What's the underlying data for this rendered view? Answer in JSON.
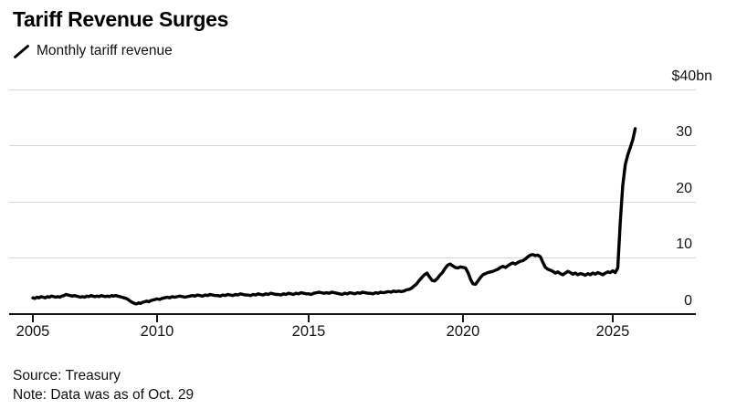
{
  "header": {
    "title": "Tariff Revenue Surges"
  },
  "legend": {
    "series_label": "Monthly tariff revenue",
    "mark": "diagonal-line-sample",
    "line_color": "#000000"
  },
  "footer": {
    "source": "Source: Treasury",
    "note": "Note: Data was as of Oct. 29"
  },
  "colors": {
    "line": "#000000",
    "gridline": "#d8d8d8",
    "axis": "#161616",
    "background": "#ffffff"
  },
  "chart_data": {
    "type": "line",
    "title": "Tariff Revenue Surges",
    "series_name": "Monthly tariff revenue",
    "unit": "$bn",
    "y_axis": {
      "top_label": "$40bn",
      "top_value": 40,
      "tick_values": [
        40,
        30,
        20,
        10,
        0
      ],
      "range": [
        0,
        40
      ],
      "grid": true,
      "labels_position": "right"
    },
    "x_axis": {
      "tick_years": [
        2005,
        2010,
        2015,
        2020,
        2025
      ],
      "range_start": "2005-01",
      "range_end": "2025-10"
    },
    "monthly_values_by_year": {
      "2005": [
        2.9,
        2.8,
        3.0,
        2.9,
        3.1,
        3.0,
        2.9,
        3.1,
        3.0,
        3.2,
        3.1,
        3.0
      ],
      "2006": [
        3.1,
        3.0,
        3.2,
        3.3,
        3.5,
        3.4,
        3.3,
        3.2,
        3.3,
        3.2,
        3.1,
        3.0
      ],
      "2007": [
        3.1,
        3.0,
        3.2,
        3.1,
        3.3,
        3.2,
        3.1,
        3.2,
        3.1,
        3.3,
        3.2,
        3.1
      ],
      "2008": [
        3.2,
        3.1,
        3.3,
        3.2,
        3.3,
        3.2,
        3.1,
        3.0,
        2.9,
        2.8,
        2.6,
        2.3
      ],
      "2009": [
        2.1,
        1.9,
        1.8,
        2.0,
        1.9,
        2.1,
        2.2,
        2.3,
        2.2,
        2.4,
        2.5,
        2.6
      ],
      "2010": [
        2.7,
        2.6,
        2.8,
        2.9,
        3.0,
        2.9,
        3.1,
        3.0,
        3.1,
        3.2,
        3.1,
        3.0
      ],
      "2011": [
        3.1,
        3.2,
        3.3,
        3.2,
        3.4,
        3.3,
        3.2,
        3.4,
        3.3,
        3.5,
        3.4,
        3.3
      ],
      "2012": [
        3.3,
        3.2,
        3.4,
        3.3,
        3.5,
        3.4,
        3.3,
        3.5,
        3.4,
        3.6,
        3.5,
        3.4
      ],
      "2013": [
        3.4,
        3.3,
        3.5,
        3.4,
        3.6,
        3.5,
        3.4,
        3.6,
        3.5,
        3.7,
        3.6,
        3.5
      ],
      "2014": [
        3.5,
        3.4,
        3.6,
        3.5,
        3.7,
        3.6,
        3.5,
        3.7,
        3.6,
        3.8,
        3.7,
        3.6
      ],
      "2015": [
        3.6,
        3.5,
        3.7,
        3.8,
        3.9,
        3.8,
        3.7,
        3.8,
        3.7,
        3.9,
        3.8,
        3.7
      ],
      "2016": [
        3.6,
        3.5,
        3.7,
        3.6,
        3.8,
        3.7,
        3.6,
        3.8,
        3.7,
        3.9,
        3.8,
        3.7
      ],
      "2017": [
        3.7,
        3.6,
        3.8,
        3.7,
        3.9,
        3.8,
        3.9,
        4.0,
        3.9,
        4.1,
        4.0,
        4.1
      ],
      "2018": [
        4.0,
        4.1,
        4.3,
        4.4,
        4.6,
        5.0,
        5.4,
        6.0,
        6.5,
        7.0,
        7.3,
        6.6
      ],
      "2019": [
        6.0,
        5.9,
        6.3,
        6.9,
        7.4,
        8.1,
        8.7,
        8.9,
        8.6,
        8.3,
        8.2,
        8.4
      ],
      "2020": [
        8.3,
        8.2,
        7.4,
        6.2,
        5.4,
        5.3,
        5.9,
        6.5,
        7.0,
        7.2,
        7.4,
        7.5
      ],
      "2021": [
        7.6,
        7.8,
        8.0,
        8.3,
        8.5,
        8.3,
        8.6,
        8.9,
        9.1,
        8.9,
        9.2,
        9.4
      ],
      "2022": [
        9.5,
        9.8,
        10.2,
        10.5,
        10.6,
        10.4,
        10.5,
        10.2,
        9.2,
        8.3,
        8.0,
        7.8
      ],
      "2023": [
        7.6,
        7.3,
        7.5,
        7.2,
        7.0,
        7.3,
        7.6,
        7.4,
        7.1,
        7.3,
        7.0,
        7.2
      ],
      "2024": [
        7.1,
        6.9,
        7.2,
        7.0,
        7.3,
        7.1,
        7.4,
        7.2,
        7.0,
        7.3,
        7.5,
        7.4
      ],
      "2025": [
        7.7,
        7.4,
        8.2,
        16.3,
        22.8,
        26.6,
        28.3,
        29.6,
        31.0,
        33.0
      ]
    }
  }
}
